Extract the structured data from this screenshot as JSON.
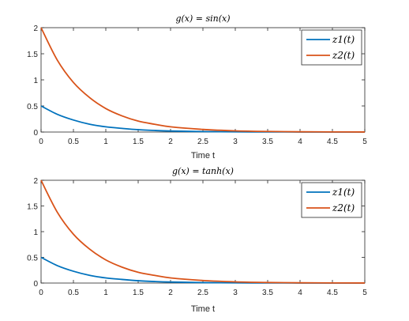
{
  "chart_data": [
    {
      "type": "line",
      "title": "g(x) = sin(x)",
      "xlabel": "Time t",
      "ylabel": "",
      "xlim": [
        0,
        5
      ],
      "ylim": [
        0,
        2
      ],
      "xticks": [
        "0",
        "0.5",
        "1",
        "1.5",
        "2",
        "2.5",
        "3",
        "3.5",
        "4",
        "4.5",
        "5"
      ],
      "yticks": [
        "0",
        "0.5",
        "1",
        "1.5",
        "2"
      ],
      "grid": false,
      "legend_position": "top-right",
      "series": [
        {
          "name": "z1(t)",
          "color": "#0072BD",
          "x": [
            0,
            0.25,
            0.5,
            0.75,
            1.0,
            1.25,
            1.5,
            1.75,
            2.0,
            2.5,
            3.0,
            3.5,
            4.0,
            4.5,
            5.0
          ],
          "y": [
            0.5,
            0.34,
            0.23,
            0.15,
            0.1,
            0.07,
            0.045,
            0.03,
            0.02,
            0.009,
            0.004,
            0.002,
            0.001,
            0.0005,
            0.0002
          ]
        },
        {
          "name": "z2(t)",
          "color": "#D95319",
          "x": [
            0,
            0.25,
            0.5,
            0.75,
            1.0,
            1.25,
            1.5,
            1.75,
            2.0,
            2.5,
            3.0,
            3.5,
            4.0,
            4.5,
            5.0
          ],
          "y": [
            2.0,
            1.38,
            0.95,
            0.66,
            0.45,
            0.31,
            0.21,
            0.15,
            0.1,
            0.05,
            0.023,
            0.011,
            0.005,
            0.0025,
            0.0012
          ]
        }
      ]
    },
    {
      "type": "line",
      "title": "g(x) = tanh(x)",
      "xlabel": "Time t",
      "ylabel": "",
      "xlim": [
        0,
        5
      ],
      "ylim": [
        0,
        2
      ],
      "xticks": [
        "0",
        "0.5",
        "1",
        "1.5",
        "2",
        "2.5",
        "3",
        "3.5",
        "4",
        "4.5",
        "5"
      ],
      "yticks": [
        "0",
        "0.5",
        "1",
        "1.5",
        "2"
      ],
      "grid": false,
      "legend_position": "top-right",
      "series": [
        {
          "name": "z1(t)",
          "color": "#0072BD",
          "x": [
            0,
            0.25,
            0.5,
            0.75,
            1.0,
            1.25,
            1.5,
            1.75,
            2.0,
            2.5,
            3.0,
            3.5,
            4.0,
            4.5,
            5.0
          ],
          "y": [
            0.5,
            0.34,
            0.23,
            0.15,
            0.1,
            0.07,
            0.045,
            0.03,
            0.02,
            0.009,
            0.004,
            0.002,
            0.001,
            0.0005,
            0.0002
          ]
        },
        {
          "name": "z2(t)",
          "color": "#D95319",
          "x": [
            0,
            0.25,
            0.5,
            0.75,
            1.0,
            1.25,
            1.5,
            1.75,
            2.0,
            2.5,
            3.0,
            3.5,
            4.0,
            4.5,
            5.0
          ],
          "y": [
            2.0,
            1.38,
            0.95,
            0.66,
            0.45,
            0.31,
            0.21,
            0.15,
            0.1,
            0.05,
            0.023,
            0.011,
            0.005,
            0.0025,
            0.0012
          ]
        }
      ]
    }
  ]
}
